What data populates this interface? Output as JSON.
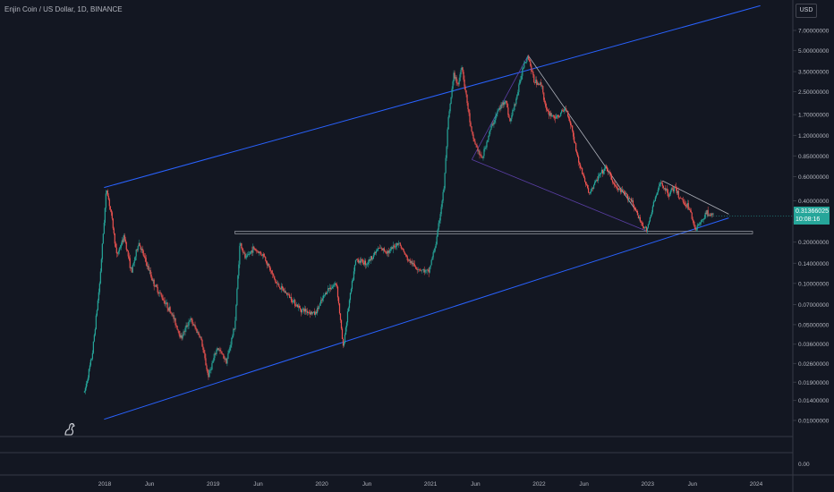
{
  "header": {
    "title": "Enjin Coin / US Dollar, 1D, BINANCE",
    "currency": "USD"
  },
  "price_tag": {
    "price": "0.31366025",
    "countdown": "10:08:16"
  },
  "colors": {
    "background": "#131722",
    "up": "#26a69a",
    "down": "#ef5350",
    "channel": "#2962ff",
    "trendline": "#b2b5be",
    "gridline": "#363a45",
    "text": "#b2b5be"
  },
  "chart_data": {
    "type": "candlestick",
    "title": "Enjin Coin / US Dollar, 1D, BINANCE",
    "yscale": "log",
    "ylim": [
      0.008,
      9.5
    ],
    "grid": false,
    "y_ticks": [
      {
        "label": "7.00000000",
        "value": 7.0
      },
      {
        "label": "5.00000000",
        "value": 5.0
      },
      {
        "label": "3.50000000",
        "value": 3.5
      },
      {
        "label": "2.50000000",
        "value": 2.5
      },
      {
        "label": "1.70000000",
        "value": 1.7
      },
      {
        "label": "1.20000000",
        "value": 1.2
      },
      {
        "label": "0.85000000",
        "value": 0.85
      },
      {
        "label": "0.60000000",
        "value": 0.6
      },
      {
        "label": "0.40000000",
        "value": 0.4
      },
      {
        "label": "0.28000000",
        "value": 0.28
      },
      {
        "label": "0.20000000",
        "value": 0.2
      },
      {
        "label": "0.14000000",
        "value": 0.14
      },
      {
        "label": "0.10000000",
        "value": 0.1
      },
      {
        "label": "0.07000000",
        "value": 0.07
      },
      {
        "label": "0.05000000",
        "value": 0.05
      },
      {
        "label": "0.03600000",
        "value": 0.036
      },
      {
        "label": "0.02600000",
        "value": 0.026
      },
      {
        "label": "0.01900000",
        "value": 0.019
      },
      {
        "label": "0.01400000",
        "value": 0.014
      },
      {
        "label": "0.01000000",
        "value": 0.01
      }
    ],
    "x_ticks": [
      {
        "label": "2018",
        "date": "2018-01-01"
      },
      {
        "label": "Jun",
        "date": "2018-06-01"
      },
      {
        "label": "2019",
        "date": "2019-01-01"
      },
      {
        "label": "Jun",
        "date": "2019-06-01"
      },
      {
        "label": "2020",
        "date": "2020-01-01"
      },
      {
        "label": "Jun",
        "date": "2020-06-01"
      },
      {
        "label": "2021",
        "date": "2021-01-01"
      },
      {
        "label": "Jun",
        "date": "2021-06-01"
      },
      {
        "label": "2022",
        "date": "2022-01-01"
      },
      {
        "label": "Jun",
        "date": "2022-06-01"
      },
      {
        "label": "2023",
        "date": "2023-01-01"
      },
      {
        "label": "Jun",
        "date": "2023-06-01"
      },
      {
        "label": "2024",
        "date": "2024-01-01"
      }
    ],
    "price_path": [
      {
        "date": "2017-10-25",
        "value": 0.016
      },
      {
        "date": "2017-11-20",
        "value": 0.03
      },
      {
        "date": "2017-12-15",
        "value": 0.1
      },
      {
        "date": "2018-01-07",
        "value": 0.5
      },
      {
        "date": "2018-01-25",
        "value": 0.3
      },
      {
        "date": "2018-02-10",
        "value": 0.16
      },
      {
        "date": "2018-03-08",
        "value": 0.22
      },
      {
        "date": "2018-04-01",
        "value": 0.12
      },
      {
        "date": "2018-04-25",
        "value": 0.2
      },
      {
        "date": "2018-06-15",
        "value": 0.1
      },
      {
        "date": "2018-08-15",
        "value": 0.06
      },
      {
        "date": "2018-09-15",
        "value": 0.04
      },
      {
        "date": "2018-10-15",
        "value": 0.055
      },
      {
        "date": "2018-11-20",
        "value": 0.04
      },
      {
        "date": "2018-12-15",
        "value": 0.021
      },
      {
        "date": "2019-01-15",
        "value": 0.034
      },
      {
        "date": "2019-02-15",
        "value": 0.027
      },
      {
        "date": "2019-03-15",
        "value": 0.05
      },
      {
        "date": "2019-04-01",
        "value": 0.2
      },
      {
        "date": "2019-04-20",
        "value": 0.15
      },
      {
        "date": "2019-05-15",
        "value": 0.18
      },
      {
        "date": "2019-06-20",
        "value": 0.16
      },
      {
        "date": "2019-08-01",
        "value": 0.1
      },
      {
        "date": "2019-09-15",
        "value": 0.08
      },
      {
        "date": "2019-10-20",
        "value": 0.065
      },
      {
        "date": "2019-12-10",
        "value": 0.06
      },
      {
        "date": "2020-01-20",
        "value": 0.09
      },
      {
        "date": "2020-02-20",
        "value": 0.1
      },
      {
        "date": "2020-03-13",
        "value": 0.034
      },
      {
        "date": "2020-04-01",
        "value": 0.07
      },
      {
        "date": "2020-04-25",
        "value": 0.15
      },
      {
        "date": "2020-06-01",
        "value": 0.14
      },
      {
        "date": "2020-07-10",
        "value": 0.18
      },
      {
        "date": "2020-08-15",
        "value": 0.17
      },
      {
        "date": "2020-09-15",
        "value": 0.2
      },
      {
        "date": "2020-10-15",
        "value": 0.15
      },
      {
        "date": "2020-11-15",
        "value": 0.13
      },
      {
        "date": "2020-12-25",
        "value": 0.12
      },
      {
        "date": "2021-01-20",
        "value": 0.2
      },
      {
        "date": "2021-02-15",
        "value": 0.5
      },
      {
        "date": "2021-03-01",
        "value": 1.5
      },
      {
        "date": "2021-03-20",
        "value": 3.3
      },
      {
        "date": "2021-04-05",
        "value": 2.8
      },
      {
        "date": "2021-04-15",
        "value": 4.0
      },
      {
        "date": "2021-05-01",
        "value": 2.3
      },
      {
        "date": "2021-05-20",
        "value": 1.2
      },
      {
        "date": "2021-06-22",
        "value": 0.8
      },
      {
        "date": "2021-07-20",
        "value": 1.3
      },
      {
        "date": "2021-08-15",
        "value": 1.8
      },
      {
        "date": "2021-09-10",
        "value": 2.2
      },
      {
        "date": "2021-09-25",
        "value": 1.5
      },
      {
        "date": "2021-10-20",
        "value": 2.4
      },
      {
        "date": "2021-11-10",
        "value": 4.0
      },
      {
        "date": "2021-11-25",
        "value": 4.6
      },
      {
        "date": "2021-12-15",
        "value": 3.0
      },
      {
        "date": "2022-01-10",
        "value": 2.8
      },
      {
        "date": "2022-01-25",
        "value": 1.8
      },
      {
        "date": "2022-03-01",
        "value": 1.6
      },
      {
        "date": "2022-04-01",
        "value": 1.9
      },
      {
        "date": "2022-04-20",
        "value": 1.4
      },
      {
        "date": "2022-05-12",
        "value": 0.8
      },
      {
        "date": "2022-06-18",
        "value": 0.45
      },
      {
        "date": "2022-07-20",
        "value": 0.6
      },
      {
        "date": "2022-08-15",
        "value": 0.7
      },
      {
        "date": "2022-09-15",
        "value": 0.5
      },
      {
        "date": "2022-10-15",
        "value": 0.45
      },
      {
        "date": "2022-11-10",
        "value": 0.4
      },
      {
        "date": "2022-12-01",
        "value": 0.3
      },
      {
        "date": "2022-12-30",
        "value": 0.24
      },
      {
        "date": "2023-01-20",
        "value": 0.38
      },
      {
        "date": "2023-02-15",
        "value": 0.55
      },
      {
        "date": "2023-03-10",
        "value": 0.45
      },
      {
        "date": "2023-04-01",
        "value": 0.5
      },
      {
        "date": "2023-04-20",
        "value": 0.42
      },
      {
        "date": "2023-05-20",
        "value": 0.36
      },
      {
        "date": "2023-06-10",
        "value": 0.25
      },
      {
        "date": "2023-07-01",
        "value": 0.28
      },
      {
        "date": "2023-07-15",
        "value": 0.33
      },
      {
        "date": "2023-08-10",
        "value": 0.31
      }
    ],
    "drawings": [
      {
        "kind": "channel-upper",
        "start": {
          "date": "2017-12-30",
          "value": 0.5
        },
        "end": {
          "date": "2024-01-15",
          "value": 10.6
        }
      },
      {
        "kind": "channel-lower",
        "start": {
          "date": "2017-12-30",
          "value": 0.0102
        },
        "end": {
          "date": "2023-10-01",
          "value": 0.3
        }
      },
      {
        "kind": "horizontal-zone",
        "start": {
          "date": "2019-03-15",
          "value": 0.23
        },
        "end": {
          "date": "2023-12-20",
          "value": 0.24
        }
      },
      {
        "kind": "trendline",
        "start": {
          "date": "2021-11-25",
          "value": 4.6
        },
        "end": {
          "date": "2022-12-01",
          "value": 0.32
        }
      },
      {
        "kind": "trendline",
        "start": {
          "date": "2023-02-20",
          "value": 0.56
        },
        "end": {
          "date": "2023-10-01",
          "value": 0.32
        }
      },
      {
        "kind": "pattern",
        "start": {
          "date": "2021-05-20",
          "value": 0.8
        },
        "end": {
          "date": "2021-11-25",
          "value": 4.6
        }
      },
      {
        "kind": "pattern",
        "start": {
          "date": "2021-05-20",
          "value": 0.8
        },
        "end": {
          "date": "2022-12-30",
          "value": 0.24
        }
      }
    ],
    "secondary_pane": {
      "y_ticks": [
        {
          "label": "0.00",
          "value": 0
        }
      ]
    }
  }
}
